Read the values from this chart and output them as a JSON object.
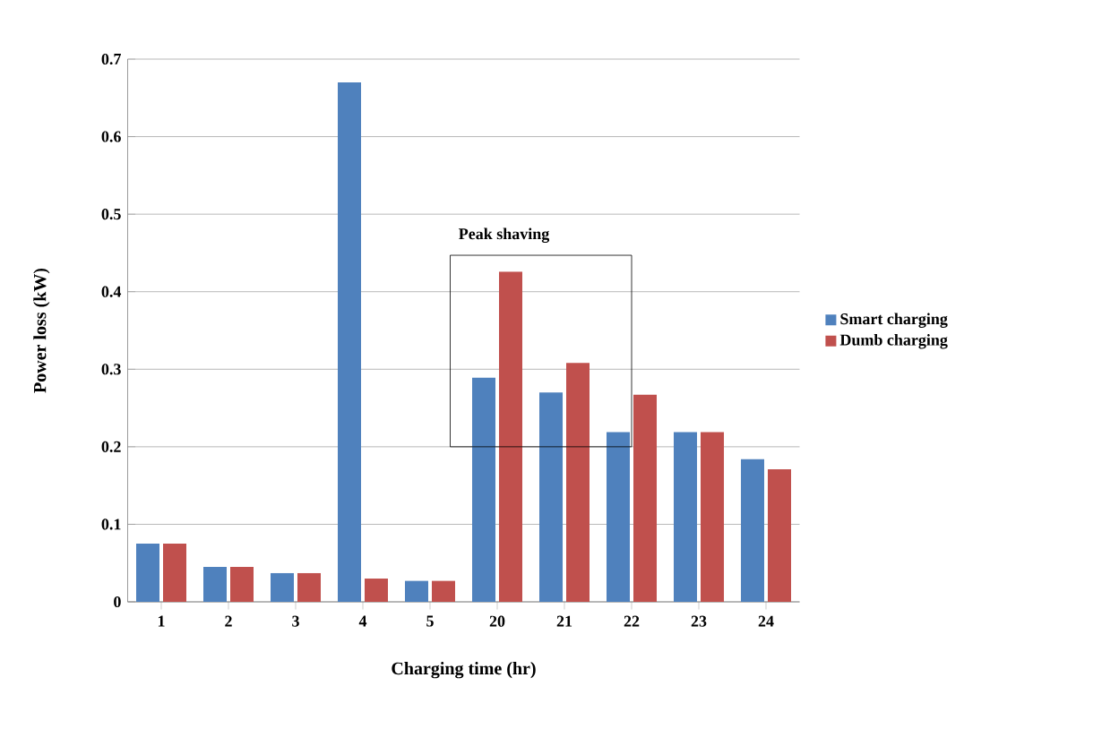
{
  "chart_data": {
    "type": "bar",
    "xlabel": "Charging time (hr)",
    "ylabel": "Power loss (kW)",
    "categories": [
      "1",
      "2",
      "3",
      "4",
      "5",
      "20",
      "21",
      "22",
      "23",
      "24"
    ],
    "series": [
      {
        "name": "Smart charging",
        "color": "#4f81bd",
        "values": [
          0.075,
          0.045,
          0.037,
          0.67,
          0.027,
          0.289,
          0.27,
          0.219,
          0.219,
          0.184
        ]
      },
      {
        "name": "Dumb charging",
        "color": "#c0504d",
        "values": [
          0.075,
          0.045,
          0.037,
          0.03,
          0.027,
          0.426,
          0.308,
          0.267,
          0.219,
          0.171
        ]
      }
    ],
    "ylim": [
      0,
      0.7
    ],
    "yticks": [
      0,
      0.1,
      0.2,
      0.3,
      0.4,
      0.5,
      0.6,
      0.7
    ],
    "grid": "y",
    "legend": "right",
    "annotations": [
      "Peak shaving"
    ]
  }
}
